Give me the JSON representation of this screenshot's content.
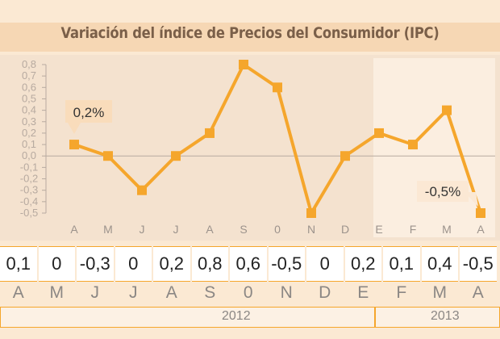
{
  "title": "Variación del índice de Precios del Consumidor (IPC)",
  "chart_data": {
    "type": "line",
    "title": "Variación del índice de Precios del Consumidor (IPC)",
    "categories": [
      "A",
      "M",
      "J",
      "J",
      "A",
      "S",
      "0",
      "N",
      "D",
      "E",
      "F",
      "M",
      "A"
    ],
    "values": [
      0.1,
      0,
      -0.3,
      0,
      0.2,
      0.8,
      0.6,
      -0.5,
      0,
      0.2,
      0.1,
      0.4,
      -0.5
    ],
    "yticks": [
      "0,8",
      "0,7",
      "0,6",
      "0,5",
      "0,4",
      "0,3",
      "0,2",
      "0,1",
      "0,0",
      "-0,1",
      "-0,2",
      "-0,3",
      "-0,4",
      "-0,5"
    ],
    "ylim": [
      -0.5,
      0.8
    ],
    "grid": false,
    "line_color": "#f5a62c",
    "highlight_color": "#fbeee0",
    "annotations": [
      "0,2%",
      "-0,5%"
    ]
  },
  "table": {
    "values": [
      "0,1",
      "0",
      "-0,3",
      "0",
      "0,2",
      "0,8",
      "0,6",
      "-0,5",
      "0",
      "0,2",
      "0,1",
      "0,4",
      "-0,5"
    ],
    "months": [
      "A",
      "M",
      "J",
      "J",
      "A",
      "S",
      "0",
      "N",
      "D",
      "E",
      "F",
      "M",
      "A"
    ],
    "years": [
      "2012",
      "2013"
    ]
  }
}
